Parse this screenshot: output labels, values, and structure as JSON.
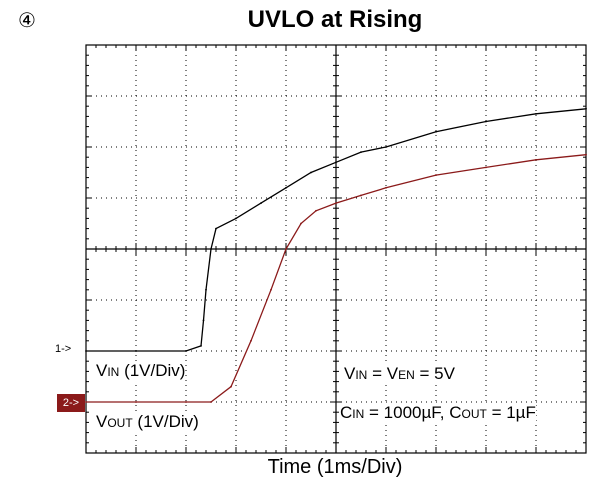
{
  "marker": "④",
  "title": "UVLO at Rising",
  "xlabel": "Time (1ms/Div)",
  "channel_markers": {
    "ch1": "1->",
    "ch2": "2->"
  },
  "colors": {
    "vin_trace": "#000000",
    "vout_trace": "#8b1a1a",
    "grid": "#000000"
  },
  "labels": {
    "vin": {
      "main": "V",
      "sub": "IN",
      "rest": " (1V/Div)"
    },
    "vout": {
      "main": "V",
      "sub": "OUT",
      "rest": " (1V/Div)"
    },
    "cond1": {
      "a": "V",
      "a_sub": "IN",
      "b": " = V",
      "b_sub": "EN",
      "c": " = 5V"
    },
    "cond2": {
      "a": "C",
      "a_sub": "IN",
      "b": " = 1000µF, C",
      "b_sub": "OUT",
      "c": " = 1µF"
    }
  },
  "chart_data": {
    "type": "line",
    "title": "UVLO at Rising",
    "xlabel": "Time (1ms/Div)",
    "x_divisions": 10,
    "y_divisions": 8,
    "grid": true,
    "series": [
      {
        "name": "VIN (1V/Div)",
        "x": [
          0,
          1,
          2,
          2.3,
          2.35,
          2.4,
          2.5,
          2.6,
          3,
          3.5,
          4,
          4.5,
          5,
          5.5,
          6,
          7,
          8,
          9,
          10
        ],
        "y": [
          2.0,
          2.0,
          2.0,
          2.1,
          2.6,
          3.2,
          4.0,
          4.4,
          4.6,
          4.9,
          5.2,
          5.5,
          5.7,
          5.9,
          6.0,
          6.3,
          6.5,
          6.65,
          6.75
        ]
      },
      {
        "name": "VOUT (1V/Div)",
        "x": [
          0,
          1,
          2,
          2.5,
          2.9,
          3.3,
          3.7,
          4.0,
          4.3,
          4.6,
          5,
          5.5,
          6,
          7,
          8,
          9,
          10
        ],
        "y": [
          1.0,
          1.0,
          1.0,
          1.0,
          1.3,
          2.2,
          3.2,
          4.0,
          4.5,
          4.75,
          4.9,
          5.05,
          5.2,
          5.45,
          5.6,
          5.75,
          5.85
        ]
      }
    ]
  }
}
